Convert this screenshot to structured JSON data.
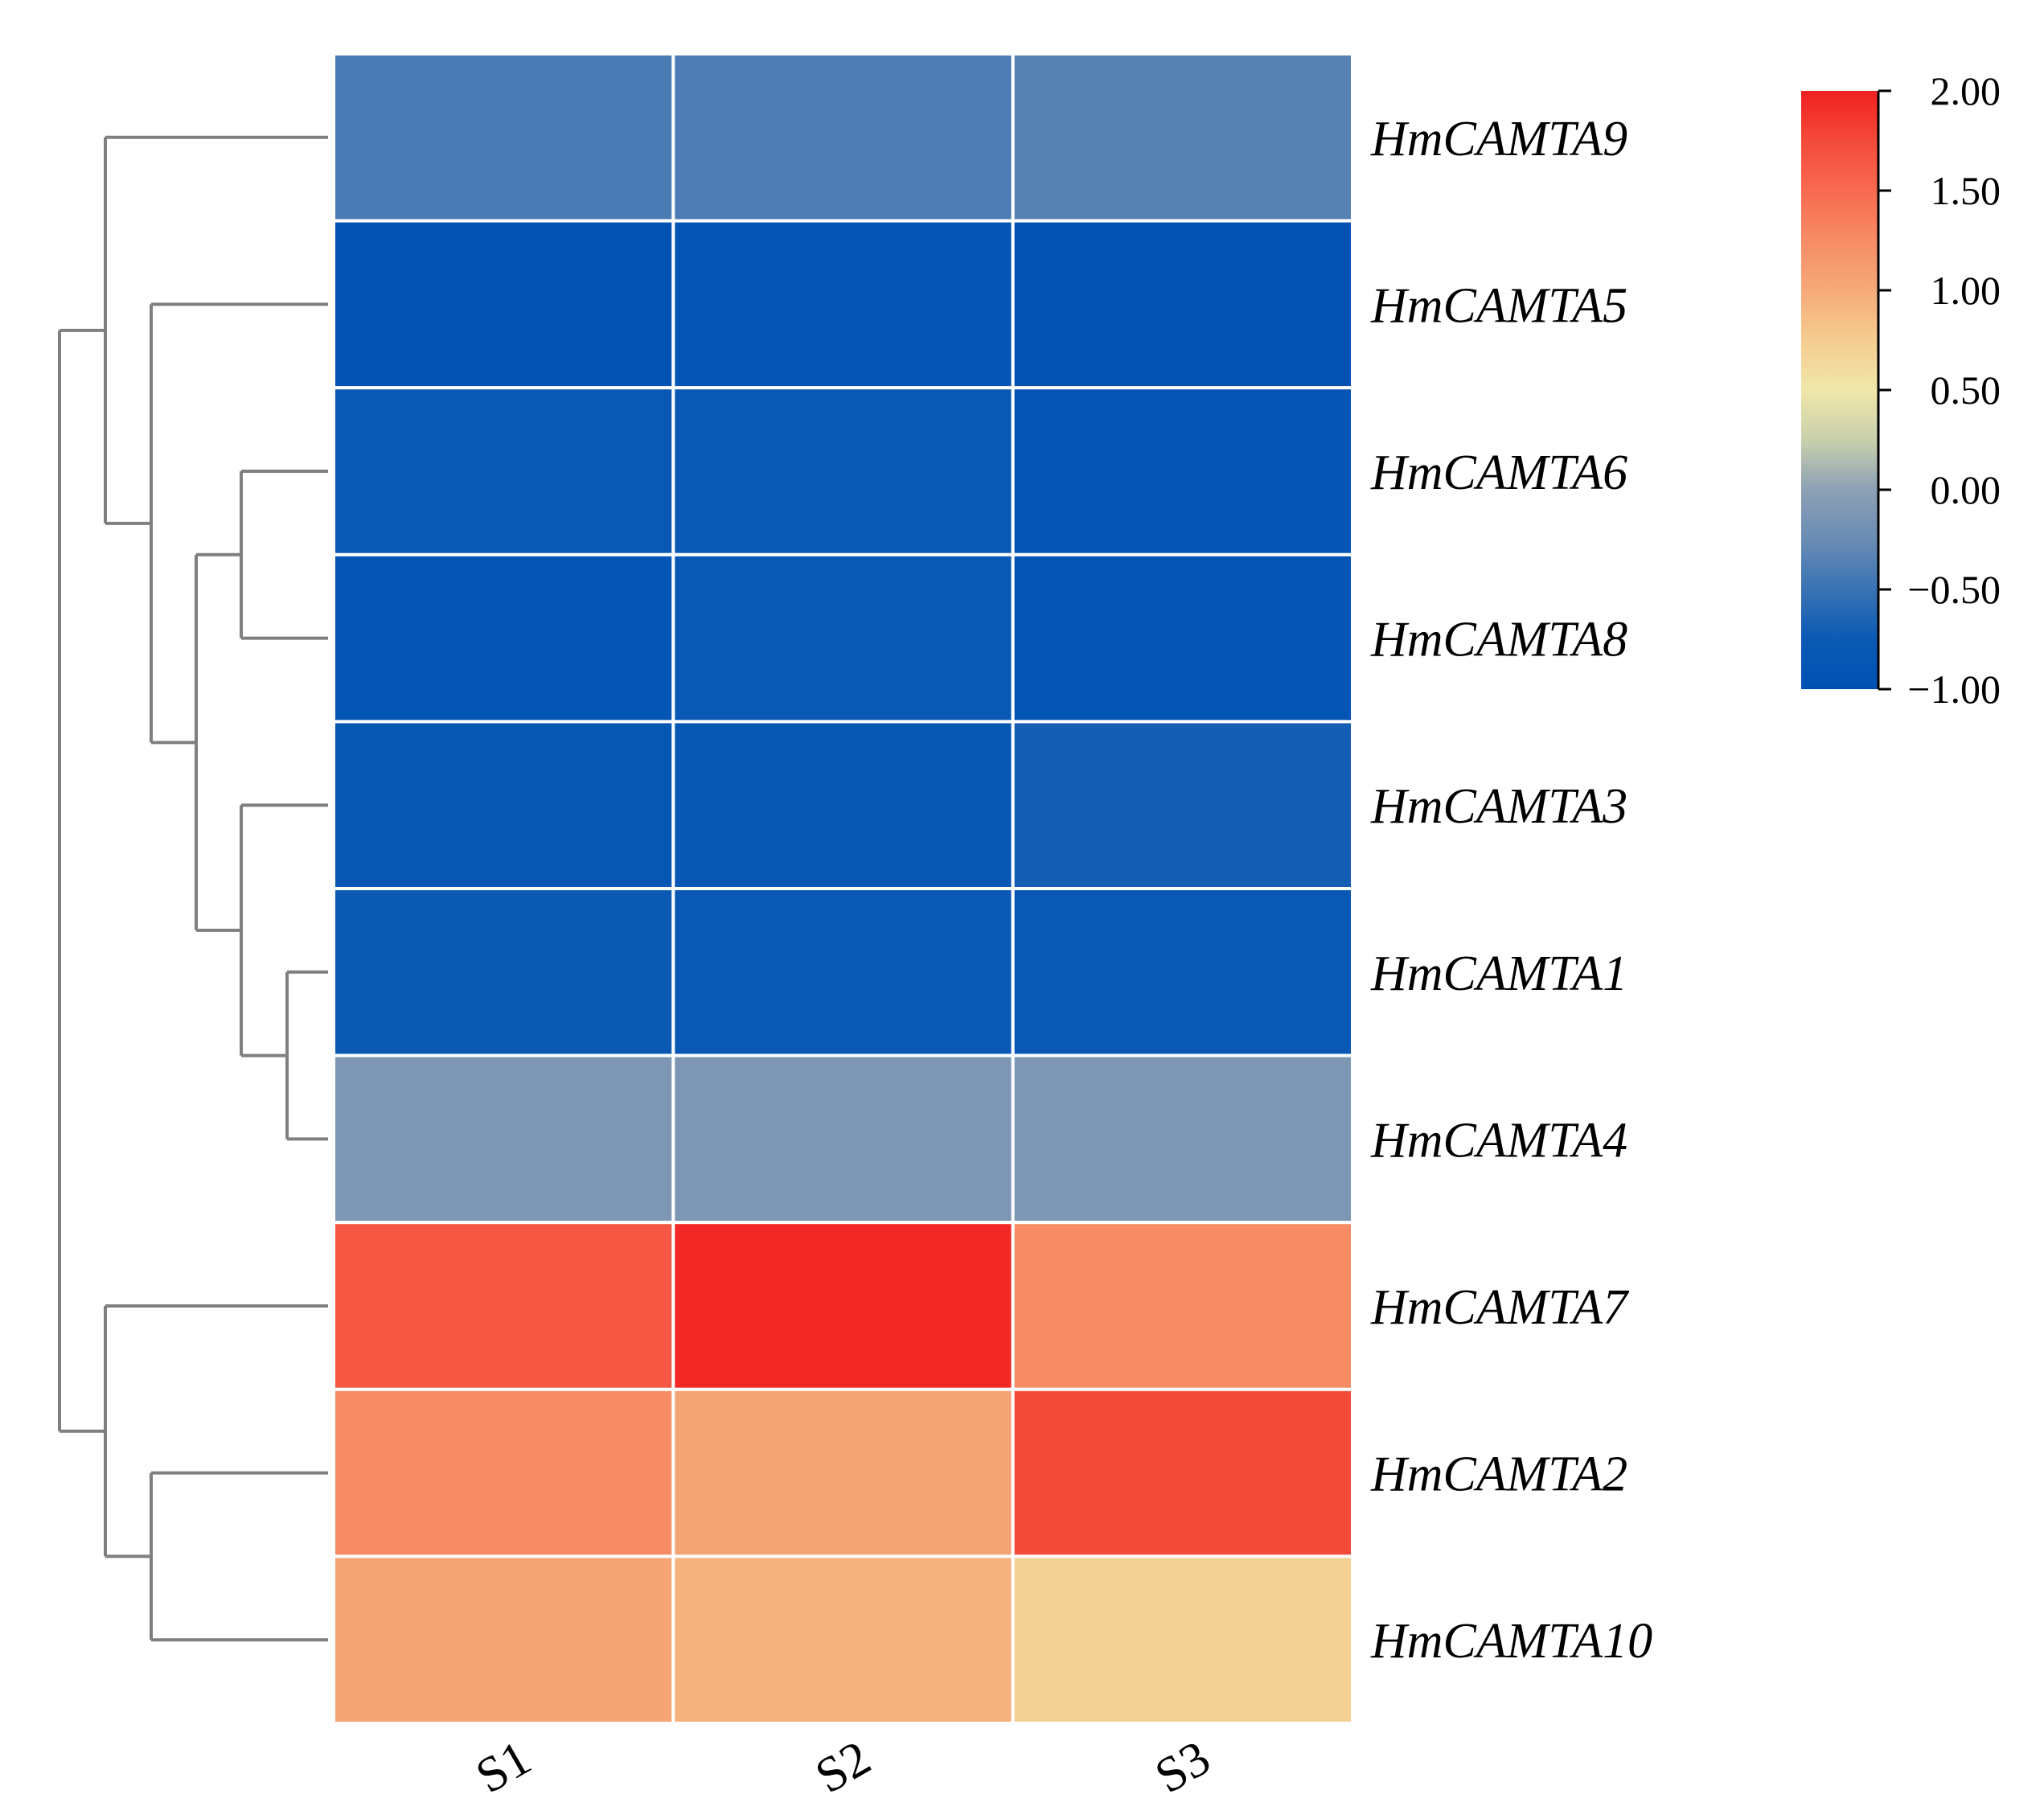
{
  "chart_data": {
    "type": "heatmap",
    "columns": [
      "S1",
      "S2",
      "S3"
    ],
    "rows": [
      "HmCAMTA9",
      "HmCAMTA5",
      "HmCAMTA6",
      "HmCAMTA8",
      "HmCAMTA3",
      "HmCAMTA1",
      "HmCAMTA4",
      "HmCAMTA7",
      "HmCAMTA2",
      "HmCAMTA10"
    ],
    "values": [
      [
        -0.42,
        -0.4,
        -0.35
      ],
      [
        -0.95,
        -0.9,
        -0.95
      ],
      [
        -0.78,
        -0.78,
        -0.88
      ],
      [
        -0.88,
        -0.78,
        -0.88
      ],
      [
        -0.85,
        -0.82,
        -0.7
      ],
      [
        -0.75,
        -0.8,
        -0.78
      ],
      [
        -0.12,
        -0.12,
        -0.12
      ],
      [
        1.65,
        1.95,
        1.25
      ],
      [
        1.25,
        1.05,
        1.75
      ],
      [
        1.05,
        0.95,
        0.7
      ]
    ],
    "colorbar": {
      "min": -1.0,
      "max": 2.0,
      "ticks": [
        "2.00",
        "1.50",
        "1.00",
        "0.50",
        "0.00",
        "−0.50",
        "−1.00"
      ],
      "tick_values": [
        2.0,
        1.5,
        1.0,
        0.5,
        0.0,
        -0.5,
        -1.0
      ]
    },
    "colors": {
      "low": "#0050b4",
      "mid_low": "#1e64b4",
      "neutral": "#8ca0b4",
      "mid_high": "#f0e6aa",
      "warm": "#f5aa78",
      "high": "#f02020",
      "cell_border": "#ffffff",
      "dendrogram": "#7f7f7f"
    },
    "dendrogram": {
      "leaf_order": [
        "HmCAMTA9",
        "HmCAMTA5",
        "HmCAMTA6",
        "HmCAMTA8",
        "HmCAMTA3",
        "HmCAMTA1",
        "HmCAMTA4",
        "HmCAMTA7",
        "HmCAMTA2",
        "HmCAMTA10"
      ],
      "merges": [
        {
          "a": "HmCAMTA1",
          "b": "HmCAMTA4",
          "height": 1
        },
        {
          "a": "HmCAMTA6",
          "b": "HmCAMTA8",
          "height": 2
        },
        {
          "a": "HmCAMTA3",
          "b": "[HmCAMTA1,HmCAMTA4]",
          "height": 2
        },
        {
          "a": "[HmCAMTA6,HmCAMTA8]",
          "b": "[HmCAMTA3,HmCAMTA1,HmCAMTA4]",
          "height": 3
        },
        {
          "a": "HmCAMTA5",
          "b": "[6,8,3,1,4]",
          "height": 4
        },
        {
          "a": "HmCAMTA9",
          "b": "[5,6,8,3,1,4]",
          "height": 5
        },
        {
          "a": "HmCAMTA2",
          "b": "HmCAMTA10",
          "height": 4
        },
        {
          "a": "HmCAMTA7",
          "b": "[HmCAMTA2,HmCAMTA10]",
          "height": 5
        },
        {
          "a": "[upper cluster]",
          "b": "[lower cluster]",
          "height": 6
        }
      ]
    }
  }
}
